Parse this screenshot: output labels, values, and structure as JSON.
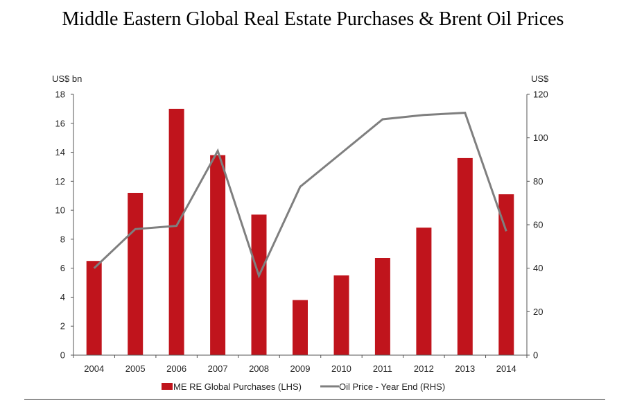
{
  "title": "Middle Eastern Global Real Estate Purchases & Brent Oil Prices",
  "chart_data": {
    "type": "bar",
    "categories": [
      "2004",
      "2005",
      "2006",
      "2007",
      "2008",
      "2009",
      "2010",
      "2011",
      "2012",
      "2013",
      "2014"
    ],
    "series": [
      {
        "name": "ME RE Global Purchases (LHS)",
        "type": "bar",
        "axis": "left",
        "color": "#c0141c",
        "values": [
          6.5,
          11.2,
          17.0,
          13.8,
          9.7,
          3.8,
          5.5,
          6.7,
          8.8,
          13.6,
          11.1
        ]
      },
      {
        "name": "Oil Price - Year End (RHS)",
        "type": "line",
        "axis": "right",
        "color": "#7f7f7f",
        "values": [
          40,
          58,
          59.5,
          94,
          36.5,
          77.5,
          93,
          108.5,
          110.5,
          111.5,
          57
        ]
      }
    ],
    "ylabel_left": "US$ bn",
    "ylabel_right": "US$",
    "ylim_left": [
      0,
      18
    ],
    "ylim_right": [
      0,
      120
    ],
    "yticks_left": [
      "0",
      "2",
      "4",
      "6",
      "8",
      "10",
      "12",
      "14",
      "16",
      "18"
    ],
    "yticks_right": [
      "0",
      "20",
      "40",
      "60",
      "80",
      "100",
      "120"
    ],
    "grid": false,
    "legend_position": "bottom"
  }
}
